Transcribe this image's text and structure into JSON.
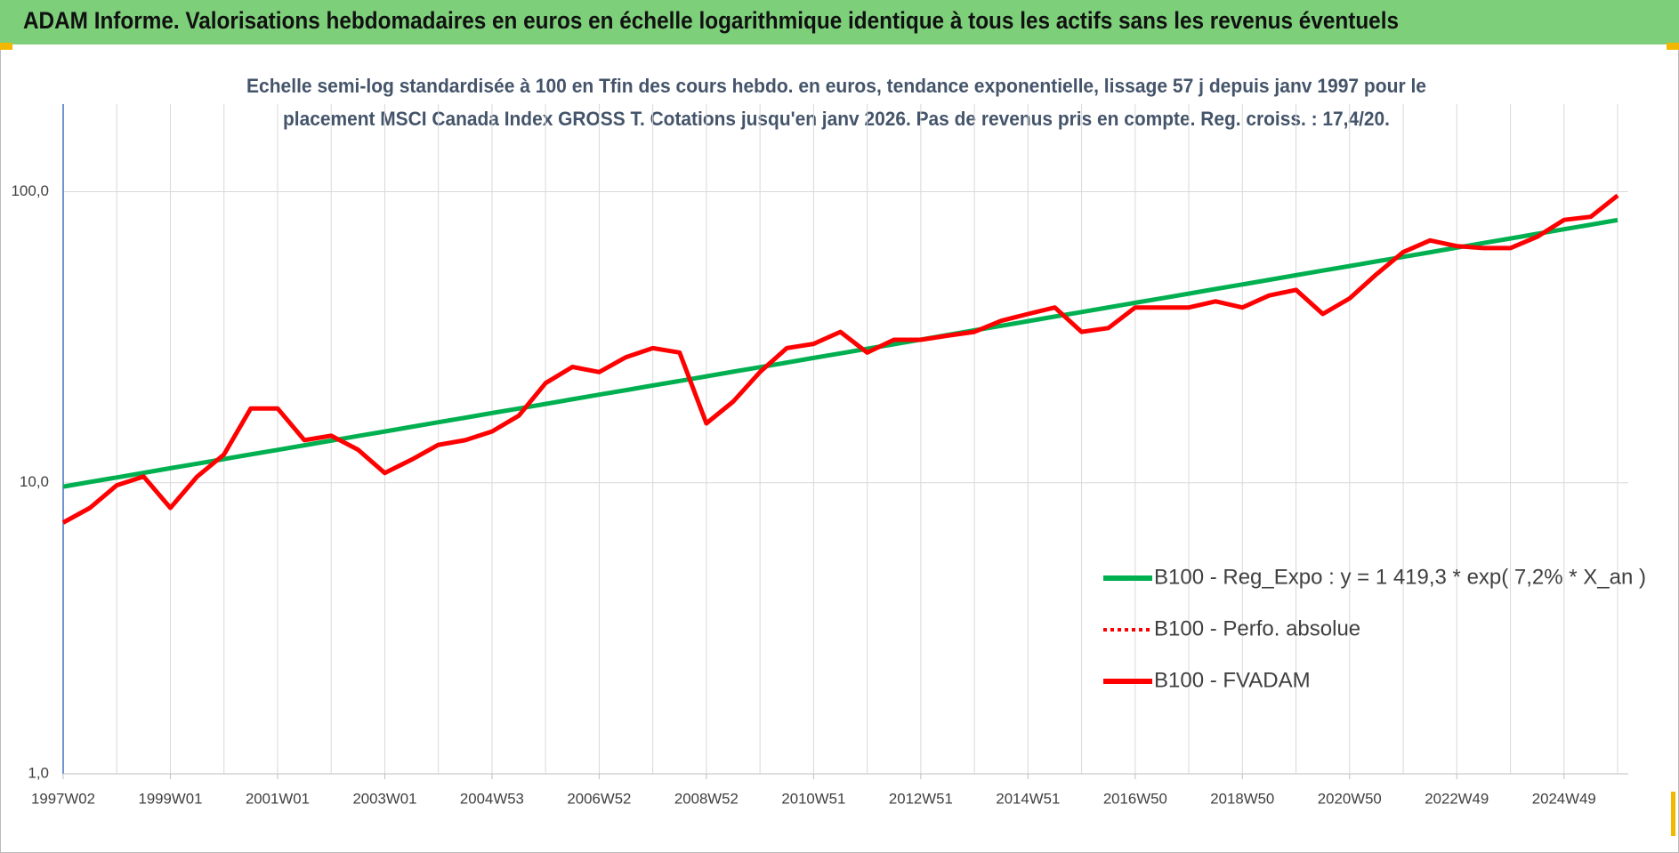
{
  "header": {
    "title": "ADAM Informe. Valorisations hebdomadaires en euros en échelle logarithmique identique à tous les actifs sans les revenus éventuels"
  },
  "chart_data": {
    "type": "line",
    "subtitle": [
      "Echelle semi-log standardisée à 100 en Tfin des cours hebdo. en euros, tendance exponentielle, lissage 57 j depuis janv 1997 pour le",
      "placement MSCI Canada Index GROSS T. Cotations jusqu'en janv 2026. Pas de revenus pris en compte. Reg. croiss. : 17,4/20."
    ],
    "categories": [
      "1997W02",
      null,
      null,
      null,
      "1999W01",
      null,
      null,
      null,
      "2001W01",
      null,
      null,
      null,
      "2003W01",
      null,
      null,
      null,
      "2004W53",
      null,
      null,
      null,
      "2006W52",
      null,
      null,
      null,
      "2008W52",
      null,
      null,
      null,
      "2010W51",
      null,
      null,
      null,
      "2012W51",
      null,
      null,
      null,
      "2014W51",
      null,
      null,
      null,
      "2016W50",
      null,
      null,
      null,
      "2018W50",
      null,
      null,
      null,
      "2020W50",
      null,
      null,
      null,
      "2022W49",
      null,
      null,
      null,
      "2024W49",
      null,
      null
    ],
    "series": [
      {
        "name": "B100 - Reg_Expo : y = 1 419,3 * exp( 7,2% *  X_an )",
        "color": "#00b050",
        "style": "solid",
        "values": [
          9.7,
          10.06,
          10.43,
          10.82,
          11.22,
          11.63,
          12.06,
          12.51,
          12.97,
          13.45,
          13.95,
          14.47,
          15.0,
          15.56,
          16.14,
          16.73,
          17.35,
          17.99,
          18.66,
          19.35,
          20.07,
          20.81,
          21.58,
          22.38,
          23.21,
          24.07,
          24.96,
          25.88,
          26.84,
          27.83,
          28.86,
          29.93,
          31.04,
          32.19,
          33.38,
          34.62,
          35.9,
          37.23,
          38.61,
          40.04,
          41.52,
          43.06,
          44.65,
          46.31,
          48.02,
          49.8,
          51.64,
          53.56,
          55.54,
          57.6,
          59.73,
          61.94,
          64.24,
          66.62,
          69.08,
          71.64,
          74.29,
          77.04,
          79.9
        ]
      },
      {
        "name": "B100 - Perfo. absolue",
        "color": "#ff0000",
        "style": "dotted",
        "values": [
          7.3,
          8.2,
          9.8,
          10.5,
          8.2,
          10.5,
          12.5,
          18,
          18,
          14,
          14.5,
          13,
          10.8,
          12,
          13.5,
          14,
          15,
          17,
          22,
          25,
          24,
          27,
          29,
          28,
          16,
          19,
          24,
          29,
          30,
          33,
          28,
          31,
          31,
          32,
          33,
          36,
          38,
          40,
          33,
          34,
          40,
          40,
          40,
          42,
          40,
          44,
          46,
          38,
          43,
          52,
          62,
          68,
          65,
          64,
          64,
          70,
          80,
          82,
          97
        ]
      },
      {
        "name": "B100 - FVADAM",
        "color": "#ff0000",
        "style": "solid",
        "values": [
          7.3,
          8.2,
          9.8,
          10.5,
          8.2,
          10.5,
          12.5,
          18,
          18,
          14,
          14.5,
          13,
          10.8,
          12,
          13.5,
          14,
          15,
          17,
          22,
          25,
          24,
          27,
          29,
          28,
          16,
          19,
          24,
          29,
          30,
          33,
          28,
          31,
          31,
          32,
          33,
          36,
          38,
          40,
          33,
          34,
          40,
          40,
          40,
          42,
          40,
          44,
          46,
          38,
          43,
          52,
          62,
          68,
          65,
          64,
          64,
          70,
          80,
          82,
          97
        ]
      }
    ],
    "log": true,
    "ylim": [
      1,
      200
    ],
    "yticks": [
      {
        "value": 1,
        "label": "1,0"
      },
      {
        "value": 10,
        "label": "10,0"
      },
      {
        "value": 100,
        "label": "100,0"
      }
    ],
    "grid": true,
    "legend": "right"
  }
}
